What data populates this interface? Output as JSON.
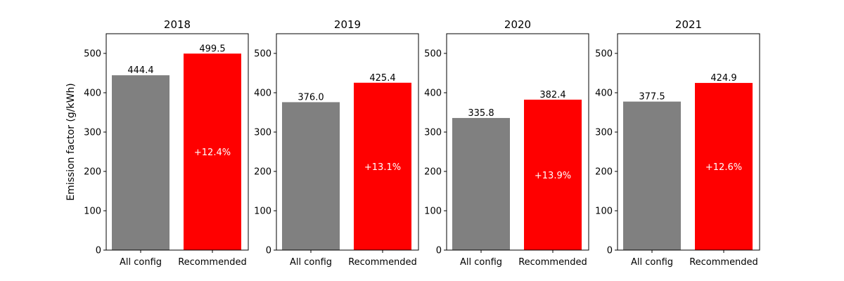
{
  "ylabel": "Emission factor (g/kWh)",
  "colors": {
    "all_config": "#808080",
    "recommended": "#ff0000",
    "axis": "#000000",
    "bar_text": "#000000",
    "inner_text": "#ffffff"
  },
  "chart_data": [
    {
      "type": "bar",
      "title": "2018",
      "categories": [
        "All config",
        "Recommended"
      ],
      "values": [
        444.4,
        499.5
      ],
      "value_labels": [
        "444.4",
        "499.5"
      ],
      "annotation": "+12.4%",
      "ylim": [
        0,
        550
      ],
      "yticks": [
        0,
        100,
        200,
        300,
        400,
        500
      ],
      "ytick_labels": [
        "0",
        "100",
        "200",
        "300",
        "400",
        "500"
      ]
    },
    {
      "type": "bar",
      "title": "2019",
      "categories": [
        "All config",
        "Recommended"
      ],
      "values": [
        376.0,
        425.4
      ],
      "value_labels": [
        "376.0",
        "425.4"
      ],
      "annotation": "+13.1%",
      "ylim": [
        0,
        550
      ],
      "yticks": [
        0,
        100,
        200,
        300,
        400,
        500
      ],
      "ytick_labels": [
        "0",
        "100",
        "200",
        "300",
        "400",
        "500"
      ]
    },
    {
      "type": "bar",
      "title": "2020",
      "categories": [
        "All config",
        "Recommended"
      ],
      "values": [
        335.8,
        382.4
      ],
      "value_labels": [
        "335.8",
        "382.4"
      ],
      "annotation": "+13.9%",
      "ylim": [
        0,
        550
      ],
      "yticks": [
        0,
        100,
        200,
        300,
        400,
        500
      ],
      "ytick_labels": [
        "0",
        "100",
        "200",
        "300",
        "400",
        "500"
      ]
    },
    {
      "type": "bar",
      "title": "2021",
      "categories": [
        "All config",
        "Recommended"
      ],
      "values": [
        377.5,
        424.9
      ],
      "value_labels": [
        "377.5",
        "424.9"
      ],
      "annotation": "+12.6%",
      "ylim": [
        0,
        550
      ],
      "yticks": [
        0,
        100,
        200,
        300,
        400,
        500
      ],
      "ytick_labels": [
        "0",
        "100",
        "200",
        "300",
        "400",
        "500"
      ]
    }
  ]
}
